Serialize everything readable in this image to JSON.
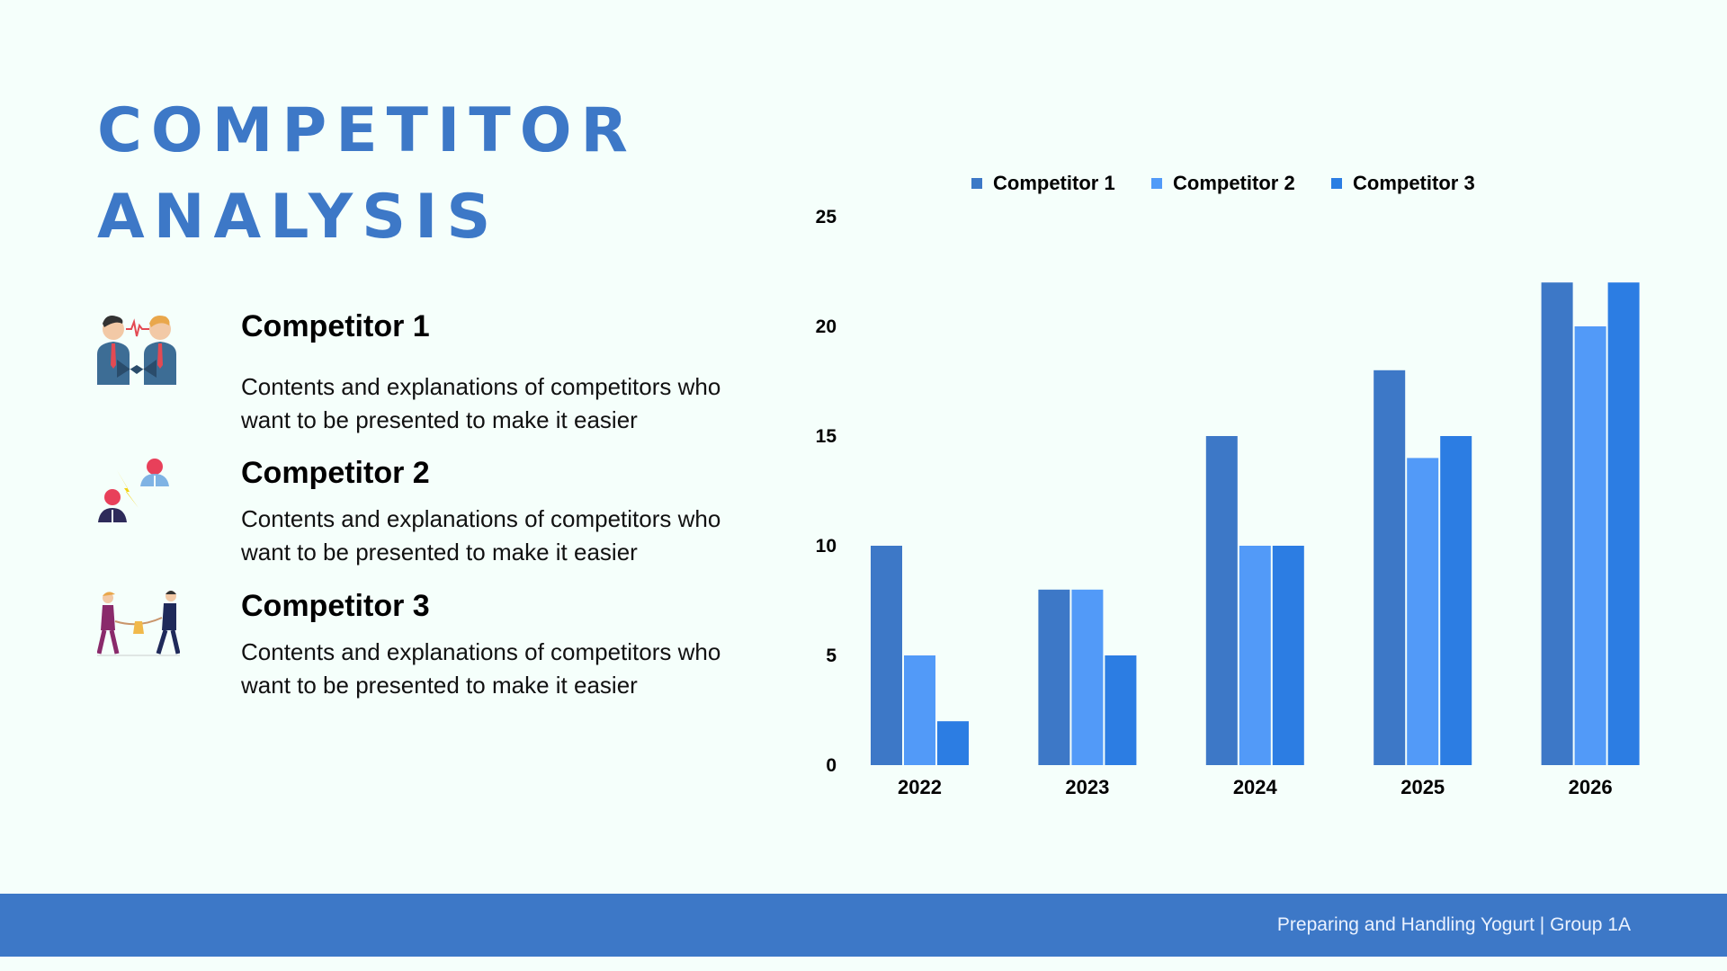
{
  "slide": {
    "title_line1": "COMPETITOR",
    "title_line2": "ANALYSIS",
    "footer": "Preparing and Handling Yogurt | Group 1A"
  },
  "competitors": [
    {
      "name": "Competitor 1",
      "description": "Contents and explanations of competitors who want to be presented to make it easier",
      "icon": "heartbeat-rivals-icon"
    },
    {
      "name": "Competitor 2",
      "description": "Contents and explanations of competitors who want to be presented to make it easier",
      "icon": "conflict-people-icon"
    },
    {
      "name": "Competitor 3",
      "description": "Contents and explanations of competitors who want to be presented to make it easier",
      "icon": "tug-of-war-icon"
    }
  ],
  "colors": {
    "title": "#3d78c7",
    "footer_bg": "#3d78c7",
    "background": "#f5fffb"
  },
  "chart_data": {
    "type": "bar",
    "categories": [
      "2022",
      "2023",
      "2024",
      "2025",
      "2026"
    ],
    "series": [
      {
        "name": "Competitor 1",
        "values": [
          10,
          8,
          15,
          18,
          22
        ],
        "color": "#3d78c7"
      },
      {
        "name": "Competitor 2",
        "values": [
          5,
          8,
          10,
          14,
          20
        ],
        "color": "#529af8"
      },
      {
        "name": "Competitor 3",
        "values": [
          2,
          5,
          10,
          15,
          22
        ],
        "color": "#2c7de3"
      }
    ],
    "ylim": [
      0,
      25
    ],
    "yticks": [
      0,
      5,
      10,
      15,
      20,
      25
    ],
    "grid": false,
    "legend": "top",
    "title": "",
    "xlabel": "",
    "ylabel": ""
  }
}
